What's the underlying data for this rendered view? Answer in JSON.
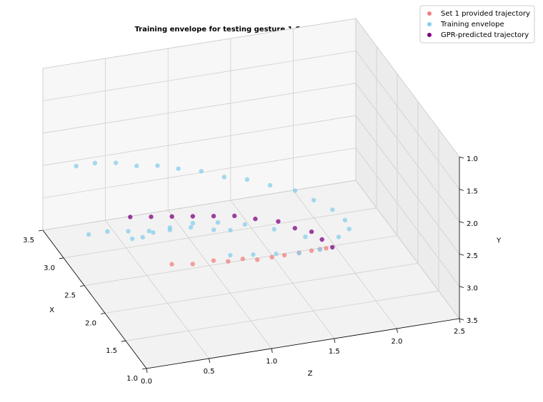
{
  "chart_data": {
    "type": "scatter3d",
    "title": "Training envelope for testing gesture 1 Orientation",
    "xlabel": "X",
    "ylabel": "Y",
    "zlabel": "Z",
    "xlim": [
      1.0,
      3.5
    ],
    "ylim": [
      3.5,
      1.0
    ],
    "zlim": [
      0.0,
      2.5
    ],
    "xticks": [
      {
        "value": 1.0,
        "label": "1.0"
      },
      {
        "value": 1.5,
        "label": "1.5"
      },
      {
        "value": 2.0,
        "label": "2.0"
      },
      {
        "value": 2.5,
        "label": "2.5"
      },
      {
        "value": 3.0,
        "label": "3.0"
      },
      {
        "value": 3.5,
        "label": "3.5"
      }
    ],
    "yticks": [
      {
        "value": 1.0,
        "label": "1.0"
      },
      {
        "value": 1.5,
        "label": "1.5"
      },
      {
        "value": 2.0,
        "label": "2.0"
      },
      {
        "value": 2.5,
        "label": "2.5"
      },
      {
        "value": 3.0,
        "label": "3.0"
      },
      {
        "value": 3.5,
        "label": "3.5"
      }
    ],
    "zticks": [
      {
        "value": 0.0,
        "label": "0.0"
      },
      {
        "value": 0.5,
        "label": "0.5"
      },
      {
        "value": 1.0,
        "label": "1.0"
      },
      {
        "value": 1.5,
        "label": "1.5"
      },
      {
        "value": 2.0,
        "label": "2.0"
      },
      {
        "value": 2.5,
        "label": "2.5"
      }
    ],
    "grid": true,
    "legend": "upper right",
    "series": [
      {
        "name": "Set 1 provided trajectory",
        "color": "#f08080",
        "x": [
          2.2,
          2.15,
          2.1,
          2.05,
          2.0,
          1.95,
          1.9,
          1.9,
          1.85,
          1.85,
          1.8,
          1.8
        ],
        "y": [
          3.1,
          3.1,
          3.05,
          3.05,
          3.0,
          3.0,
          2.95,
          2.95,
          2.9,
          2.9,
          2.85,
          2.85
        ],
        "z": [
          0.6,
          0.75,
          0.9,
          1.0,
          1.1,
          1.2,
          1.3,
          1.4,
          1.5,
          1.6,
          1.65,
          1.7
        ]
      },
      {
        "name": "Training envelope",
        "color": "#87ceeb",
        "x": [
          3.3,
          3.3,
          3.25,
          3.2,
          3.15,
          3.1,
          3.0,
          2.9,
          2.8,
          2.7,
          2.55,
          2.4,
          2.25,
          2.1,
          2.0,
          1.95,
          2.3,
          2.45,
          2.55,
          2.6,
          2.6,
          2.55,
          2.5,
          2.45,
          2.4,
          3.0,
          3.0,
          2.95,
          2.9,
          2.85,
          2.8,
          2.7,
          2.6,
          2.3,
          2.2,
          2.1,
          2.0,
          1.95
        ],
        "y": [
          2.4,
          2.4,
          2.4,
          2.45,
          2.45,
          2.5,
          2.5,
          2.55,
          2.55,
          2.6,
          2.6,
          2.65,
          2.7,
          2.75,
          2.8,
          2.85,
          3.1,
          3.05,
          3.0,
          2.95,
          2.9,
          2.9,
          2.85,
          2.85,
          2.8,
          3.2,
          3.2,
          3.2,
          3.2,
          3.15,
          3.15,
          3.15,
          3.1,
          3.2,
          3.15,
          3.1,
          3.05,
          3.0
        ],
        "z": [
          0.2,
          0.35,
          0.5,
          0.65,
          0.8,
          0.95,
          1.1,
          1.25,
          1.4,
          1.55,
          1.7,
          1.8,
          1.9,
          1.95,
          1.95,
          1.85,
          1.7,
          1.5,
          1.3,
          1.1,
          0.9,
          0.7,
          0.55,
          0.45,
          0.35,
          0.2,
          0.35,
          0.5,
          0.65,
          0.8,
          0.95,
          1.1,
          1.2,
          1.1,
          1.25,
          1.4,
          1.55,
          1.7
        ]
      },
      {
        "name": "GPR-predicted trajectory",
        "color": "#800080",
        "x": [
          2.6,
          2.55,
          2.5,
          2.45,
          2.4,
          2.35,
          2.3,
          2.2,
          2.1,
          2.0,
          1.9,
          1.8
        ],
        "y": [
          2.65,
          2.65,
          2.65,
          2.65,
          2.65,
          2.65,
          2.7,
          2.7,
          2.75,
          2.75,
          2.8,
          2.85
        ],
        "z": [
          0.4,
          0.55,
          0.7,
          0.85,
          1.0,
          1.15,
          1.3,
          1.45,
          1.55,
          1.65,
          1.7,
          1.75
        ]
      }
    ]
  }
}
